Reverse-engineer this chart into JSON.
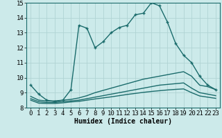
{
  "title": "",
  "xlabel": "Humidex (Indice chaleur)",
  "ylabel": "",
  "bg_color": "#cceaea",
  "grid_color": "#b0d4d4",
  "line_color": "#1a6b6b",
  "xlim": [
    -0.5,
    23.5
  ],
  "ylim": [
    8,
    15
  ],
  "yticks": [
    8,
    9,
    10,
    11,
    12,
    13,
    14,
    15
  ],
  "xticks": [
    0,
    1,
    2,
    3,
    4,
    5,
    6,
    7,
    8,
    9,
    10,
    11,
    12,
    13,
    14,
    15,
    16,
    17,
    18,
    19,
    20,
    21,
    22,
    23
  ],
  "lines": [
    {
      "x": [
        0,
        1,
        2,
        3,
        4,
        5,
        6,
        7,
        8,
        9,
        10,
        11,
        12,
        13,
        14,
        15,
        16,
        17,
        18,
        19,
        20,
        21,
        22,
        23
      ],
      "y": [
        9.5,
        8.9,
        8.5,
        8.4,
        8.5,
        9.2,
        13.5,
        13.3,
        12.0,
        12.4,
        13.0,
        13.35,
        13.5,
        14.2,
        14.3,
        15.0,
        14.8,
        13.7,
        12.3,
        11.5,
        11.0,
        10.1,
        9.5,
        9.2
      ],
      "marker": "+"
    },
    {
      "x": [
        0,
        1,
        2,
        3,
        4,
        5,
        6,
        7,
        8,
        9,
        10,
        11,
        12,
        13,
        14,
        15,
        16,
        17,
        18,
        19,
        20,
        21,
        22,
        23
      ],
      "y": [
        8.75,
        8.5,
        8.45,
        8.45,
        8.5,
        8.55,
        8.65,
        8.8,
        9.0,
        9.15,
        9.3,
        9.45,
        9.6,
        9.75,
        9.9,
        10.0,
        10.1,
        10.2,
        10.3,
        10.4,
        10.1,
        9.5,
        9.4,
        9.2
      ],
      "marker": null
    },
    {
      "x": [
        0,
        1,
        2,
        3,
        4,
        5,
        6,
        7,
        8,
        9,
        10,
        11,
        12,
        13,
        14,
        15,
        16,
        17,
        18,
        19,
        20,
        21,
        22,
        23
      ],
      "y": [
        8.6,
        8.4,
        8.35,
        8.35,
        8.4,
        8.45,
        8.5,
        8.6,
        8.7,
        8.8,
        8.9,
        9.0,
        9.1,
        9.2,
        9.3,
        9.4,
        9.5,
        9.55,
        9.6,
        9.65,
        9.3,
        9.0,
        8.9,
        8.8
      ],
      "marker": null
    },
    {
      "x": [
        0,
        1,
        2,
        3,
        4,
        5,
        6,
        7,
        8,
        9,
        10,
        11,
        12,
        13,
        14,
        15,
        16,
        17,
        18,
        19,
        20,
        21,
        22,
        23
      ],
      "y": [
        8.5,
        8.3,
        8.28,
        8.28,
        8.32,
        8.38,
        8.42,
        8.5,
        8.58,
        8.65,
        8.72,
        8.8,
        8.88,
        8.95,
        9.02,
        9.08,
        9.13,
        9.18,
        9.22,
        9.25,
        9.0,
        8.78,
        8.7,
        8.62
      ],
      "marker": null
    }
  ],
  "marker_size": 3.5,
  "linewidth": 1.0,
  "font_size": 6.5
}
